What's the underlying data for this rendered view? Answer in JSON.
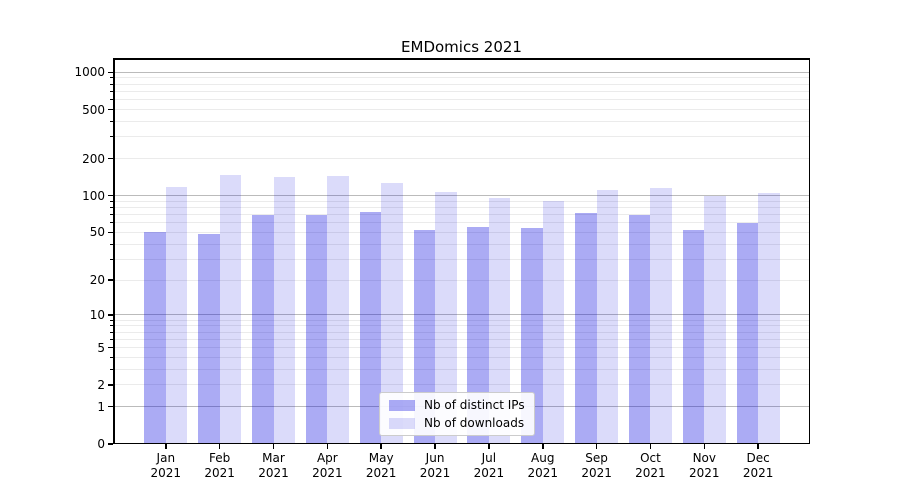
{
  "title": "EMDomics 2021",
  "chart_data": {
    "type": "bar",
    "title": "EMDomics 2021",
    "x_months": [
      "Jan",
      "Feb",
      "Mar",
      "Apr",
      "May",
      "Jun",
      "Jul",
      "Aug",
      "Sep",
      "Oct",
      "Nov",
      "Dec"
    ],
    "x_year": "2021",
    "series": [
      {
        "name": "Nb of distinct IPs",
        "color_hex": "#a8a8f0",
        "values": [
          50,
          49,
          70,
          69,
          73,
          52,
          55,
          54,
          72,
          70,
          52,
          60
        ]
      },
      {
        "name": "Nb of downloads",
        "color_hex": "#dcdcfa",
        "values": [
          117,
          148,
          142,
          145,
          126,
          108,
          96,
          91,
          112,
          116,
          100,
          106
        ]
      }
    ],
    "y_scale": "log1p",
    "y_tick_labels": [
      0,
      1,
      2,
      5,
      10,
      20,
      50,
      100,
      200,
      500,
      1000
    ],
    "y_major_gridlines": [
      1,
      10,
      100,
      1000
    ],
    "y_minor_gridlines": [
      2,
      3,
      4,
      5,
      6,
      7,
      8,
      9,
      20,
      30,
      40,
      50,
      60,
      70,
      80,
      90,
      200,
      300,
      400,
      500,
      600,
      700,
      800,
      900
    ],
    "ylim": [
      0,
      1310
    ],
    "grid": "on",
    "legend_position": "lower center"
  },
  "colors": {
    "bar_ips": "rgba(0,0,221,0.33)",
    "bar_downloads": "rgba(0,0,221,0.14)",
    "grid_major": "#bbbbbb",
    "grid_minor": "#ebebeb",
    "spine": "#000000",
    "text": "#000000",
    "legend_bg": "rgba(255,255,255,0.9)",
    "legend_border": "#cccccc"
  }
}
